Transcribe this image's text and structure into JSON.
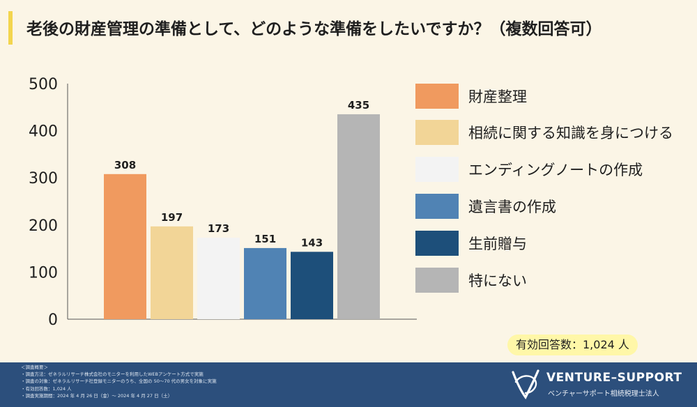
{
  "title": "老後の財産管理の準備として、どのような準備をしたいですか？（複数回答可）",
  "chart_data": {
    "type": "bar",
    "categories": [
      "財産整理",
      "相続に関する知識を身につける",
      "エンディングノートの作成",
      "遺言書の作成",
      "生前贈与",
      "特にない"
    ],
    "values": [
      308,
      197,
      173,
      151,
      143,
      435
    ],
    "colors": [
      "#f09a5f",
      "#f2d597",
      "#f3f3f3",
      "#5083b4",
      "#1d4f7a",
      "#b5b5b5"
    ],
    "ylim": [
      0,
      500
    ],
    "yticks": [
      0,
      100,
      200,
      300,
      400,
      500
    ],
    "grid": false,
    "legend_position": "right"
  },
  "respondents_label": "有効回答数：1,024 人",
  "survey_notes": [
    "＜調査概要＞",
    "・調査方法：ゼネラルリサーチ株式会社のモニターを利用したWEBアンケート方式で実施",
    "・調査の対象：ゼネラルリサーチ社登録モニターのうち、全国の 50～70 代の男女を対象に実施",
    "・有効回答数：1,024 人",
    "・調査実施期間：2024 年 4 月 26 日（金）～ 2024 年 4 月 27 日（土）"
  ],
  "brand": {
    "name": "VENTURE–SUPPORT",
    "subtitle": "ベンチャーサポート相続税理士法人",
    "logo_icon": "v-swirl-logo-icon"
  }
}
